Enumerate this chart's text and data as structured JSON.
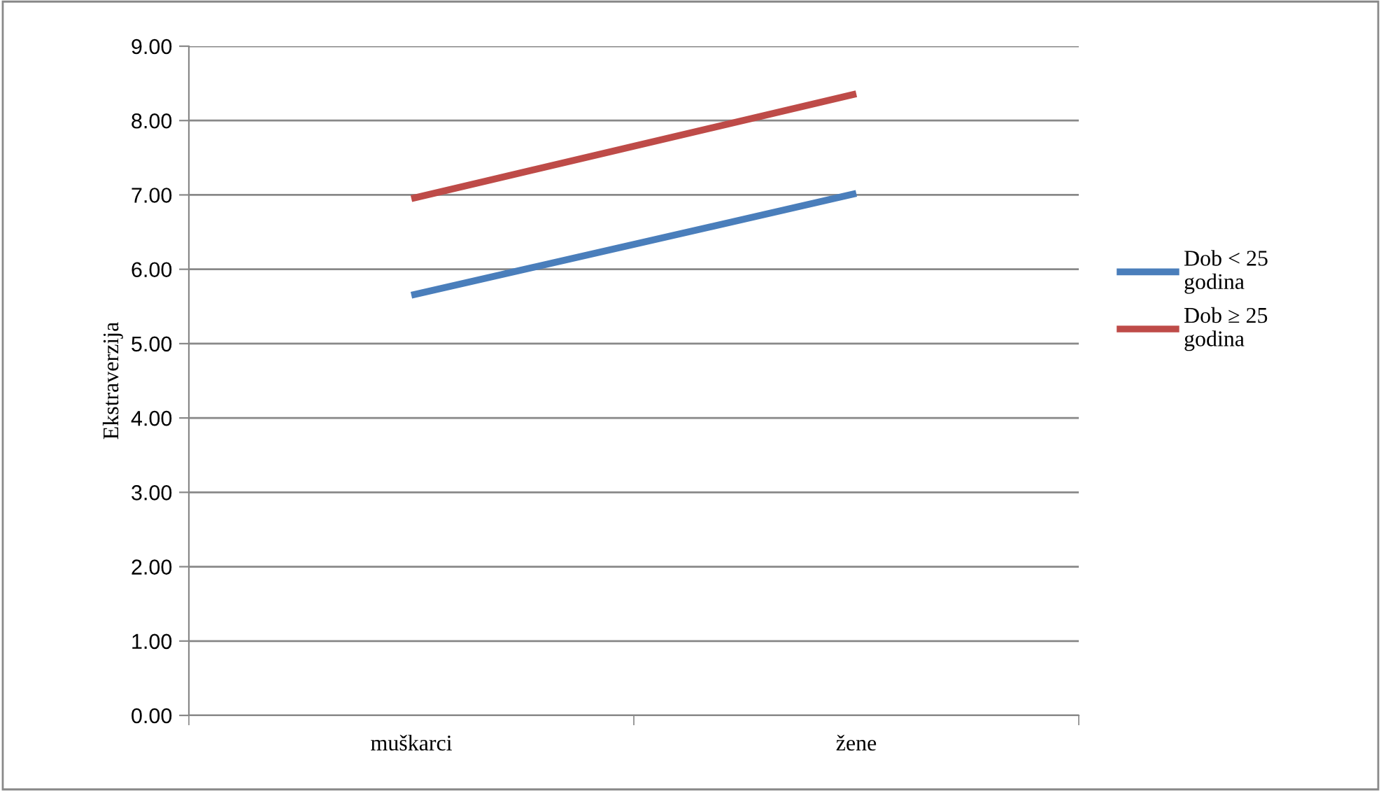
{
  "chart_data": {
    "type": "line",
    "ylabel": "Ekstraverzija",
    "categories": [
      "muškarci",
      "žene"
    ],
    "series": [
      {
        "name": "Dob < 25 godina",
        "color": "#4a7ebb",
        "values": [
          5.65,
          7.02
        ]
      },
      {
        "name": "Dob ≥ 25 godina",
        "color": "#be4b48",
        "values": [
          6.95,
          8.36
        ]
      }
    ],
    "ylim": [
      0,
      9
    ],
    "yticks": [
      {
        "value": 0,
        "label": "0.00"
      },
      {
        "value": 1,
        "label": "1.00"
      },
      {
        "value": 2,
        "label": "2.00"
      },
      {
        "value": 3,
        "label": "3.00"
      },
      {
        "value": 4,
        "label": "4.00"
      },
      {
        "value": 5,
        "label": "5.00"
      },
      {
        "value": 6,
        "label": "6.00"
      },
      {
        "value": 7,
        "label": "7.00"
      },
      {
        "value": 8,
        "label": "8.00"
      },
      {
        "value": 9,
        "label": "9.00"
      }
    ],
    "grid": "y",
    "legend": "right",
    "marker": "none",
    "line_style": "solid"
  }
}
